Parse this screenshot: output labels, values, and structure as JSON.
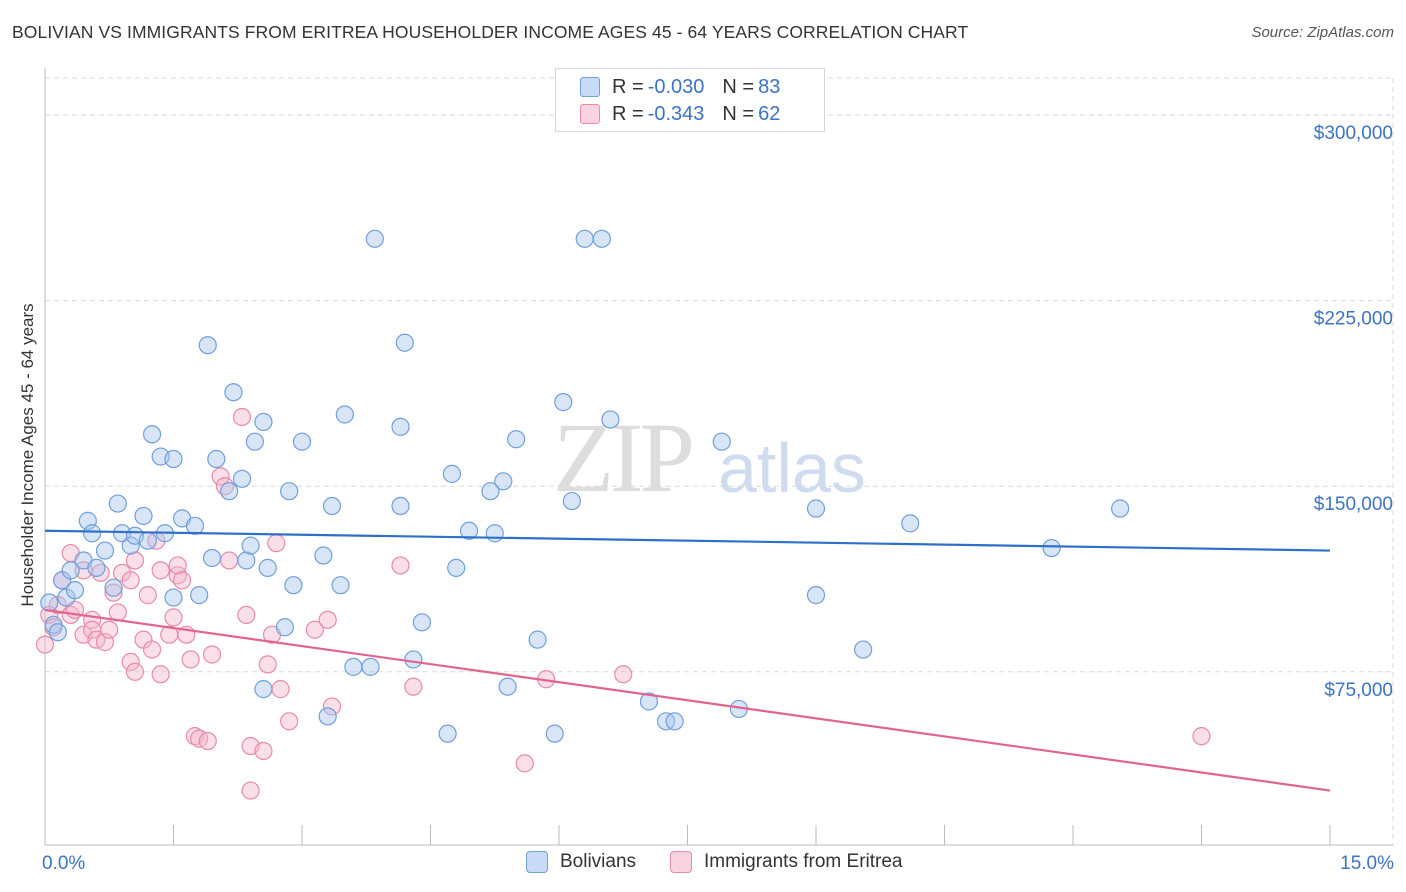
{
  "title": "BOLIVIAN VS IMMIGRANTS FROM ERITREA HOUSEHOLDER INCOME AGES 45 - 64 YEARS CORRELATION CHART",
  "source": "Source: ZipAtlas.com",
  "watermark": {
    "zip": "ZIP",
    "atlas": "atlas"
  },
  "legend": {
    "rows": [
      {
        "r_label": "R =",
        "r_value": "-0.030",
        "n_label": "N =",
        "n_value": "83",
        "color": "#a9c6ee"
      },
      {
        "r_label": "R =",
        "r_value": "-0.343",
        "n_label": "N =",
        "n_value": "62",
        "color": "#f5b8cc"
      }
    ]
  },
  "bottom_legend": {
    "series1": "Bolivians",
    "series2": "Immigrants from Eritrea"
  },
  "colors": {
    "blue_fill": "#a9c6ee",
    "blue_stroke": "#6f9fdc",
    "blue_line": "#2e6fc9",
    "pink_fill": "#f5b8cc",
    "pink_stroke": "#e88aa8",
    "pink_line": "#e0648f",
    "tick_text": "#3b73c6",
    "grid": "#d9d9d9"
  },
  "chart_data": {
    "type": "scatter",
    "title": "BOLIVIAN VS IMMIGRANTS FROM ERITREA HOUSEHOLDER INCOME AGES 45 - 64 YEARS CORRELATION CHART",
    "xlabel": "",
    "ylabel": "Householder Income Ages 45 - 64 years",
    "xlim": [
      0,
      15
    ],
    "ylim": [
      5000,
      315000
    ],
    "x_tick_labels": [
      "0.0%",
      "15.0%"
    ],
    "y_ticks": [
      75000,
      150000,
      225000,
      300000
    ],
    "y_tick_labels": [
      "$75,000",
      "$150,000",
      "$225,000",
      "$300,000"
    ],
    "grid": true,
    "series": [
      {
        "name": "Bolivians",
        "r": -0.03,
        "n": 83,
        "trend": {
          "x": [
            0,
            15
          ],
          "y": [
            132000,
            124000
          ]
        },
        "points": [
          [
            0.05,
            103000
          ],
          [
            0.1,
            94000
          ],
          [
            0.2,
            112000
          ],
          [
            0.25,
            105000
          ],
          [
            0.3,
            116000
          ],
          [
            0.35,
            108000
          ],
          [
            0.45,
            120000
          ],
          [
            0.5,
            136000
          ],
          [
            0.55,
            131000
          ],
          [
            0.7,
            124000
          ],
          [
            0.8,
            109000
          ],
          [
            0.85,
            143000
          ],
          [
            0.9,
            131000
          ],
          [
            1.0,
            126000
          ],
          [
            1.05,
            130000
          ],
          [
            1.15,
            138000
          ],
          [
            1.2,
            128000
          ],
          [
            1.25,
            171000
          ],
          [
            1.35,
            162000
          ],
          [
            1.4,
            131000
          ],
          [
            1.5,
            105000
          ],
          [
            1.6,
            137000
          ],
          [
            1.5,
            161000
          ],
          [
            1.75,
            134000
          ],
          [
            1.8,
            106000
          ],
          [
            1.9,
            207000
          ],
          [
            1.95,
            121000
          ],
          [
            2.0,
            161000
          ],
          [
            2.15,
            148000
          ],
          [
            2.2,
            188000
          ],
          [
            2.3,
            153000
          ],
          [
            2.35,
            120000
          ],
          [
            2.4,
            126000
          ],
          [
            2.45,
            168000
          ],
          [
            2.55,
            176000
          ],
          [
            2.6,
            117000
          ],
          [
            2.55,
            68000
          ],
          [
            2.85,
            148000
          ],
          [
            2.9,
            110000
          ],
          [
            2.8,
            93000
          ],
          [
            3.0,
            168000
          ],
          [
            3.25,
            122000
          ],
          [
            3.35,
            142000
          ],
          [
            3.45,
            110000
          ],
          [
            3.3,
            57000
          ],
          [
            3.5,
            179000
          ],
          [
            3.6,
            77000
          ],
          [
            3.85,
            250000
          ],
          [
            3.8,
            77000
          ],
          [
            4.15,
            174000
          ],
          [
            4.15,
            142000
          ],
          [
            4.2,
            208000
          ],
          [
            4.3,
            80000
          ],
          [
            4.4,
            95000
          ],
          [
            4.7,
            50000
          ],
          [
            4.75,
            155000
          ],
          [
            4.8,
            117000
          ],
          [
            4.95,
            132000
          ],
          [
            5.2,
            148000
          ],
          [
            5.25,
            131000
          ],
          [
            5.35,
            152000
          ],
          [
            5.4,
            69000
          ],
          [
            5.5,
            169000
          ],
          [
            5.75,
            88000
          ],
          [
            5.95,
            50000
          ],
          [
            6.05,
            184000
          ],
          [
            6.15,
            144000
          ],
          [
            6.3,
            250000
          ],
          [
            6.5,
            250000
          ],
          [
            6.6,
            177000
          ],
          [
            7.05,
            63000
          ],
          [
            7.25,
            55000
          ],
          [
            7.35,
            55000
          ],
          [
            7.9,
            168000
          ],
          [
            8.1,
            60000
          ],
          [
            9.0,
            141000
          ],
          [
            9.0,
            106000
          ],
          [
            9.55,
            84000
          ],
          [
            10.1,
            135000
          ],
          [
            11.75,
            125000
          ],
          [
            12.55,
            141000
          ],
          [
            0.15,
            91000
          ],
          [
            0.6,
            117000
          ]
        ]
      },
      {
        "name": "Immigrants from Eritrea",
        "r": -0.343,
        "n": 62,
        "trend": {
          "x": [
            0,
            15
          ],
          "y": [
            100000,
            27000
          ]
        },
        "points": [
          [
            0.0,
            86000
          ],
          [
            0.05,
            98000
          ],
          [
            0.1,
            93000
          ],
          [
            0.15,
            102000
          ],
          [
            0.2,
            112000
          ],
          [
            0.3,
            98000
          ],
          [
            0.3,
            123000
          ],
          [
            0.45,
            90000
          ],
          [
            0.45,
            116000
          ],
          [
            0.55,
            96000
          ],
          [
            0.55,
            92000
          ],
          [
            0.6,
            88000
          ],
          [
            0.7,
            87000
          ],
          [
            0.75,
            92000
          ],
          [
            0.8,
            107000
          ],
          [
            0.85,
            99000
          ],
          [
            0.9,
            115000
          ],
          [
            1.0,
            112000
          ],
          [
            1.0,
            79000
          ],
          [
            1.05,
            75000
          ],
          [
            1.05,
            120000
          ],
          [
            1.15,
            88000
          ],
          [
            1.2,
            106000
          ],
          [
            1.25,
            84000
          ],
          [
            1.3,
            128000
          ],
          [
            1.35,
            116000
          ],
          [
            1.35,
            74000
          ],
          [
            1.45,
            90000
          ],
          [
            1.5,
            97000
          ],
          [
            1.55,
            114000
          ],
          [
            1.55,
            118000
          ],
          [
            1.6,
            112000
          ],
          [
            1.65,
            90000
          ],
          [
            1.7,
            80000
          ],
          [
            1.75,
            49000
          ],
          [
            1.8,
            48000
          ],
          [
            1.9,
            47000
          ],
          [
            1.95,
            82000
          ],
          [
            2.05,
            154000
          ],
          [
            2.1,
            150000
          ],
          [
            2.15,
            120000
          ],
          [
            2.3,
            178000
          ],
          [
            2.35,
            98000
          ],
          [
            2.4,
            45000
          ],
          [
            2.4,
            27000
          ],
          [
            2.55,
            43000
          ],
          [
            2.6,
            78000
          ],
          [
            2.65,
            90000
          ],
          [
            2.7,
            127000
          ],
          [
            2.75,
            68000
          ],
          [
            2.85,
            55000
          ],
          [
            3.15,
            92000
          ],
          [
            3.3,
            96000
          ],
          [
            3.35,
            61000
          ],
          [
            4.15,
            118000
          ],
          [
            4.3,
            69000
          ],
          [
            5.6,
            38000
          ],
          [
            5.85,
            72000
          ],
          [
            6.75,
            74000
          ],
          [
            13.5,
            49000
          ],
          [
            0.35,
            100000
          ],
          [
            0.65,
            115000
          ]
        ]
      }
    ]
  }
}
